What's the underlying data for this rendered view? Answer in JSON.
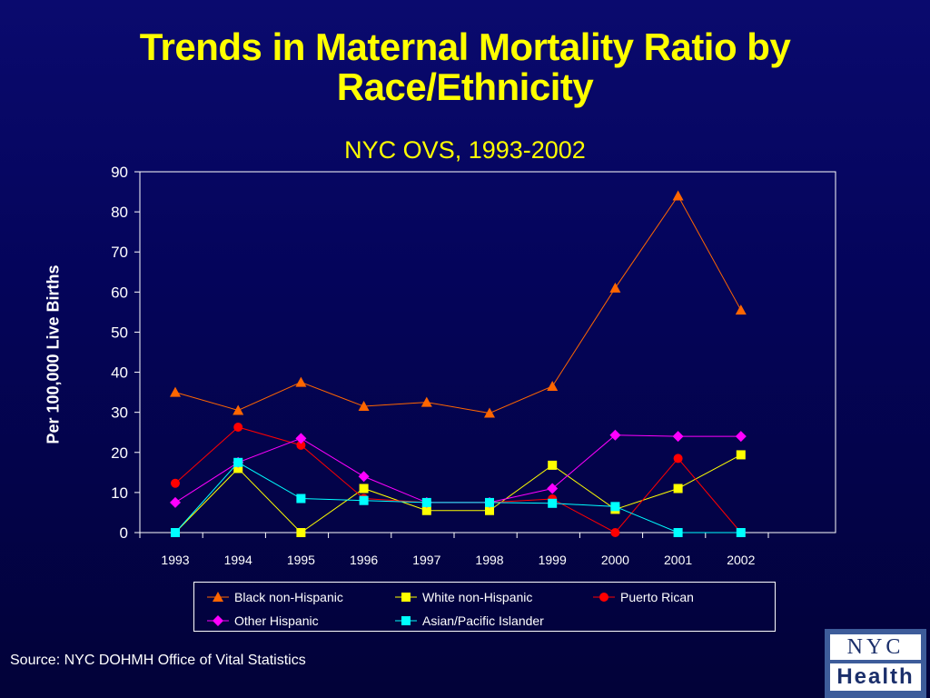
{
  "title_line1": "Trends in Maternal Mortality Ratio by",
  "title_line2": "Race/Ethnicity",
  "subtitle": "NYC OVS, 1993-2002",
  "source": "Source:  NYC DOHMH Office of Vital Statistics",
  "logo": {
    "top": "NYC",
    "bottom": "Health"
  },
  "chart_data": {
    "type": "line",
    "title": "Trends in Maternal Mortality Ratio by Race/Ethnicity",
    "subtitle": "NYC OVS, 1993-2002",
    "ylabel": "Per 100,000 Live Births",
    "xlabel": "",
    "ylim": [
      0,
      90
    ],
    "yticks": [
      "0",
      "10",
      "20",
      "30",
      "40",
      "50",
      "60",
      "70",
      "80",
      "90"
    ],
    "categories": [
      "1993",
      "1994",
      "1995",
      "1996",
      "1997",
      "1998",
      "1999",
      "2000",
      "2001",
      "2002"
    ],
    "grid": false,
    "legend_position": "bottom",
    "series": [
      {
        "name": "Black non-Hispanic",
        "color": "#ff6600",
        "marker": "triangle",
        "values": [
          35,
          30.5,
          37.5,
          31.5,
          32.5,
          29.8,
          36.5,
          61,
          84,
          55.5
        ]
      },
      {
        "name": "White non-Hispanic",
        "color": "#ffff00",
        "marker": "square",
        "values": [
          0,
          16,
          0,
          11,
          5.5,
          5.5,
          16.8,
          5.8,
          11,
          19.4
        ]
      },
      {
        "name": "Puerto Rican",
        "color": "#ff0000",
        "marker": "circle",
        "values": [
          12.3,
          26.3,
          21.8,
          8.5,
          7.5,
          7.5,
          8.4,
          0,
          18.5,
          0
        ]
      },
      {
        "name": "Other Hispanic",
        "color": "#ff00ff",
        "marker": "diamond",
        "values": [
          7.5,
          17.5,
          23.5,
          14,
          7.5,
          7.5,
          11,
          24.3,
          24,
          24
        ]
      },
      {
        "name": "Asian/Pacific Islander",
        "color": "#00ffff",
        "marker": "square",
        "values": [
          0,
          17.5,
          8.5,
          8,
          7.5,
          7.5,
          7.3,
          6.5,
          0,
          0
        ]
      }
    ]
  }
}
